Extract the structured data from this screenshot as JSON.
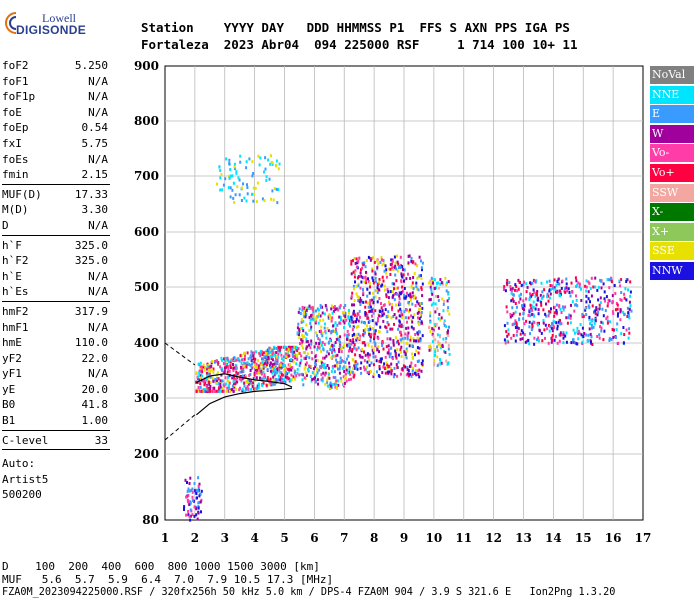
{
  "logo": {
    "line1": "Lowell",
    "line2": "DIGISONDE"
  },
  "header": {
    "line1": "Station    YYYY DAY   DDD HHMMSS P1  FFS S AXN PPS IGA PS",
    "line2": "Fortaleza  2023 Abr04  094 225000 RSF     1 714 100 10+ 11"
  },
  "params_group1": [
    {
      "k": "foF2",
      "v": "5.250"
    },
    {
      "k": "foF1",
      "v": "N/A"
    },
    {
      "k": "foF1p",
      "v": "N/A"
    },
    {
      "k": "foE",
      "v": "N/A"
    },
    {
      "k": "foEp",
      "v": "0.54"
    },
    {
      "k": "fxI",
      "v": "5.75"
    },
    {
      "k": "foEs",
      "v": "N/A"
    },
    {
      "k": "fmin",
      "v": "2.15"
    }
  ],
  "params_group2": [
    {
      "k": "MUF(D)",
      "v": "17.33"
    },
    {
      "k": "M(D)",
      "v": "3.30"
    },
    {
      "k": "D",
      "v": "N/A"
    }
  ],
  "params_group3": [
    {
      "k": "h`F",
      "v": "325.0"
    },
    {
      "k": "h`F2",
      "v": "325.0"
    },
    {
      "k": "h`E",
      "v": "N/A"
    },
    {
      "k": "h`Es",
      "v": "N/A"
    }
  ],
  "params_group4": [
    {
      "k": "hmF2",
      "v": "317.9"
    },
    {
      "k": "hmF1",
      "v": "N/A"
    },
    {
      "k": "hmE",
      "v": "110.0"
    },
    {
      "k": "yF2",
      "v": "22.0"
    },
    {
      "k": "yF1",
      "v": "N/A"
    },
    {
      "k": "yE",
      "v": "20.0"
    },
    {
      "k": "B0",
      "v": "41.8"
    },
    {
      "k": "B1",
      "v": "1.00"
    }
  ],
  "clevel": {
    "k": "C-level",
    "v": "33"
  },
  "auto": [
    "Auto:",
    "Artist5",
    "500200"
  ],
  "legend": [
    {
      "label": "NoVal",
      "color": "#808080"
    },
    {
      "label": "NNE",
      "color": "#00e5ff"
    },
    {
      "label": "E",
      "color": "#3a9bff"
    },
    {
      "label": "W",
      "color": "#a0009c"
    },
    {
      "label": "Vo-",
      "color": "#ff3ca8"
    },
    {
      "label": "Vo+",
      "color": "#ff0040"
    },
    {
      "label": "SSW",
      "color": "#f4a6a0"
    },
    {
      "label": "X-",
      "color": "#007800"
    },
    {
      "label": "X+",
      "color": "#8fc85a"
    },
    {
      "label": "SSE",
      "color": "#e8e000"
    },
    {
      "label": "NNW",
      "color": "#1a10e0"
    }
  ],
  "bottom": {
    "d_line": "D    100  200  400  600  800 1000 1500 3000 [km]",
    "muf_line": "MUF   5.6  5.7  5.9  6.4  7.0  7.9 10.5 17.3 [MHz]",
    "file_line": "FZA0M_2023094225000.RSF / 320fx256h 50 kHz 5.0 km / DPS-4 FZA0M 904 / 3.9 S 321.6 E   Ion2Png 1.3.20"
  },
  "chart_data": {
    "type": "scatter",
    "xlim": [
      1,
      17
    ],
    "ylim": [
      80,
      900
    ],
    "xticks": [
      1,
      2,
      3,
      4,
      5,
      6,
      7,
      8,
      9,
      10,
      11,
      12,
      13,
      14,
      15,
      16,
      17
    ],
    "yticks": [
      80,
      200,
      300,
      400,
      500,
      600,
      700,
      800,
      900
    ],
    "grid": true,
    "legend_position": "right",
    "clusters": [
      {
        "name": "low-echo",
        "fx": [
          1.6,
          2.2
        ],
        "hy": [
          82,
          160
        ],
        "colors": [
          "#a0009c",
          "#3a9bff",
          "#1a10e0",
          "#ff3ca8"
        ],
        "n": 70
      },
      {
        "name": "F-trace-main",
        "fx": [
          2.0,
          5.4
        ],
        "hy": [
          315,
          395
        ],
        "colors": [
          "#ff3ca8",
          "#ff0040",
          "#e8e000",
          "#3a9bff",
          "#00e5ff",
          "#a0009c"
        ],
        "n": 700
      },
      {
        "name": "F-trace-spread",
        "fx": [
          5.4,
          7.2
        ],
        "hy": [
          320,
          470
        ],
        "colors": [
          "#3a9bff",
          "#e8e000",
          "#ff3ca8",
          "#00e5ff",
          "#a0009c"
        ],
        "n": 420
      },
      {
        "name": "spread-F-8to9",
        "fx": [
          7.2,
          9.6
        ],
        "hy": [
          340,
          560
        ],
        "colors": [
          "#e8e000",
          "#a0009c",
          "#ff3ca8",
          "#ff0040",
          "#3a9bff",
          "#1a10e0"
        ],
        "n": 700
      },
      {
        "name": "spread-F-10",
        "fx": [
          9.8,
          10.5
        ],
        "hy": [
          360,
          520
        ],
        "colors": [
          "#e8e000",
          "#f4a6a0",
          "#3a9bff",
          "#a0009c",
          "#00e5ff"
        ],
        "n": 130
      },
      {
        "name": "high-freq",
        "fx": [
          12.3,
          16.6
        ],
        "hy": [
          400,
          520
        ],
        "colors": [
          "#a0009c",
          "#3a9bff",
          "#1a10e0",
          "#ff0040",
          "#ff3ca8",
          "#00e5ff"
        ],
        "n": 520
      },
      {
        "name": "multi-hop",
        "fx": [
          2.7,
          4.8
        ],
        "hy": [
          655,
          740
        ],
        "colors": [
          "#3a9bff",
          "#e8e000",
          "#00e5ff"
        ],
        "n": 90
      }
    ],
    "profile_curve": {
      "f": [
        2.05,
        2.5,
        3,
        3.5,
        4,
        4.5,
        5,
        5.25
      ],
      "h": [
        270,
        290,
        302,
        308,
        312,
        314,
        316,
        318
      ]
    },
    "oxtrace_curve": {
      "f": [
        2.05,
        2.5,
        3,
        3.5,
        4,
        4.5,
        5,
        5.25
      ],
      "h": [
        328,
        340,
        344,
        338,
        333,
        330,
        326,
        320
      ]
    },
    "dashed_upper": {
      "f": [
        1.0,
        2.0
      ],
      "h": [
        400,
        360
      ]
    },
    "dashed_lower": {
      "f": [
        1.0,
        2.0
      ],
      "h": [
        225,
        270
      ]
    }
  }
}
